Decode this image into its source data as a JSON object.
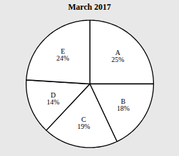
{
  "chart_data": {
    "type": "pie",
    "title": "March 2017",
    "categories": [
      "A",
      "B",
      "C",
      "D",
      "E"
    ],
    "values": [
      25,
      18,
      19,
      14,
      24
    ],
    "value_labels": [
      "25%",
      "18%",
      "19%",
      "14%",
      "24%"
    ],
    "colors": [
      "#ffffff",
      "#ffffff",
      "#ffffff",
      "#ffffff",
      "#ffffff"
    ],
    "data_labels": true
  }
}
